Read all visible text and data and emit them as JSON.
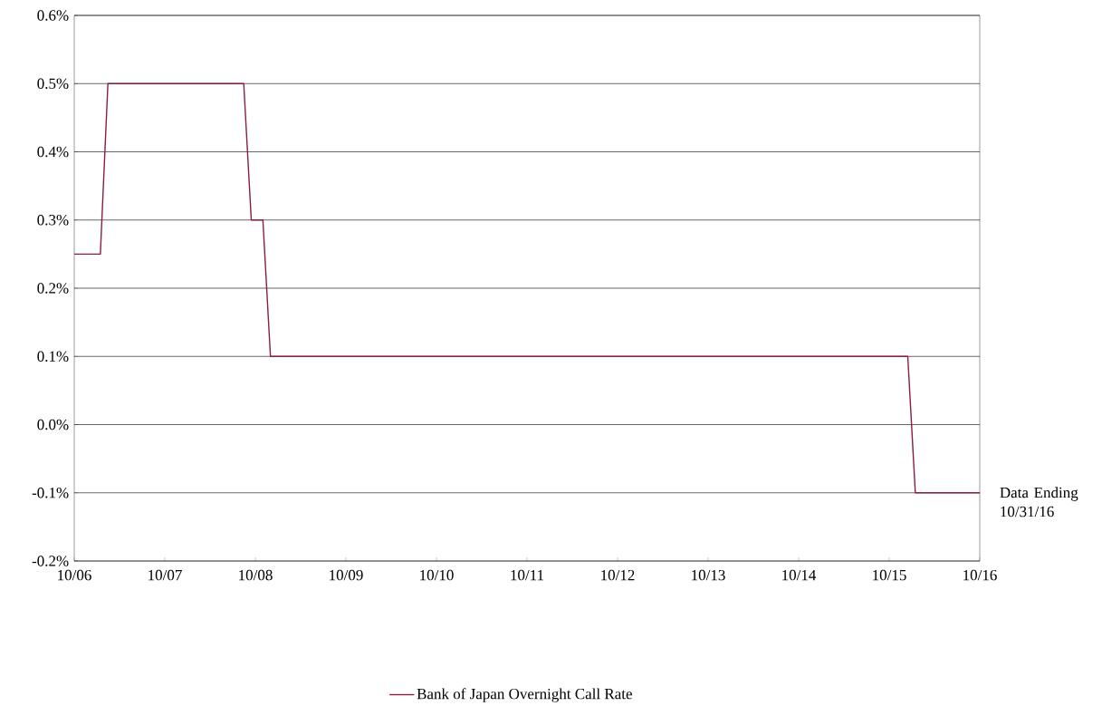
{
  "chart_data": {
    "type": "step",
    "xlim": [
      "2006-10-01",
      "2016-10-01"
    ],
    "ylim": [
      -0.2,
      0.6
    ],
    "xticks": [
      {
        "value": "2006-10-01",
        "label": "10/06"
      },
      {
        "value": "2007-10-01",
        "label": "10/07"
      },
      {
        "value": "2008-10-01",
        "label": "10/08"
      },
      {
        "value": "2009-10-01",
        "label": "10/09"
      },
      {
        "value": "2010-10-01",
        "label": "10/10"
      },
      {
        "value": "2011-10-01",
        "label": "10/11"
      },
      {
        "value": "2012-10-01",
        "label": "10/12"
      },
      {
        "value": "2013-10-01",
        "label": "10/13"
      },
      {
        "value": "2014-10-01",
        "label": "10/14"
      },
      {
        "value": "2015-10-01",
        "label": "10/15"
      },
      {
        "value": "2016-10-01",
        "label": "10/16"
      }
    ],
    "yticks": [
      {
        "value": -0.2,
        "label": "-0.2%"
      },
      {
        "value": -0.1,
        "label": "-0.1%"
      },
      {
        "value": 0.0,
        "label": "0.0%"
      },
      {
        "value": 0.1,
        "label": "0.1%"
      },
      {
        "value": 0.2,
        "label": "0.2%"
      },
      {
        "value": 0.3,
        "label": "0.3%"
      },
      {
        "value": 0.4,
        "label": "0.4%"
      },
      {
        "value": 0.5,
        "label": "0.5%"
      },
      {
        "value": 0.6,
        "label": "0.6%"
      }
    ],
    "grid": "y",
    "legend": "bottom",
    "marker": "none",
    "line_style": "solid",
    "series": [
      {
        "name": "Bank of Japan Overnight Call Rate",
        "color": "#8c1d40",
        "x": [
          "2006-10-01",
          "2007-01-15",
          "2007-02-15",
          "2008-08-15",
          "2008-09-15",
          "2008-11-01",
          "2008-12-01",
          "2015-12-15",
          "2016-01-15",
          "2016-10-01"
        ],
        "values": [
          0.25,
          0.25,
          0.5,
          0.5,
          0.3,
          0.3,
          0.1,
          0.1,
          -0.1,
          -0.1
        ]
      }
    ],
    "annotations": [
      {
        "text": "Data Ending 10/31/16",
        "x": "2016-10-01",
        "y": -0.1
      }
    ]
  }
}
